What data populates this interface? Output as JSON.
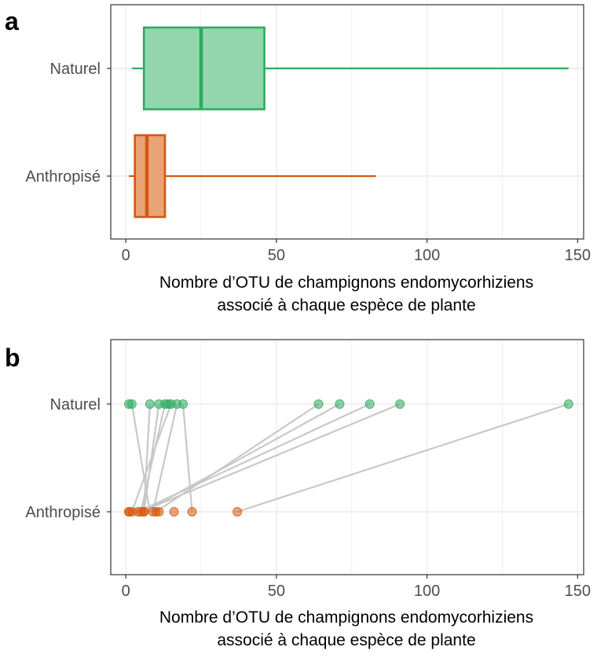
{
  "colors": {
    "naturel": "#2eaa5e",
    "naturel_fill": "#93d6ad",
    "anthropise": "#d5570f",
    "anthropise_fill": "#e8a476",
    "panel_border": "#333333",
    "grid": "#ebebeb",
    "link_line": "#c8c8c8"
  },
  "chart_data": [
    {
      "type": "boxplot",
      "panel_label": "a",
      "orientation": "horizontal",
      "categories": [
        "Naturel",
        "Anthropisé"
      ],
      "boxes": [
        {
          "category": "Naturel",
          "min": 2,
          "q1": 6,
          "median": 25,
          "q3": 46,
          "max": 147
        },
        {
          "category": "Anthropisé",
          "min": 1,
          "q1": 3,
          "median": 7,
          "q3": 13,
          "max": 83
        }
      ],
      "xlim": [
        -5,
        152
      ],
      "xticks": [
        0,
        50,
        100,
        150
      ],
      "xlabel": [
        "Nombre d’OTU de champignons endomycorhiziens",
        "associé à chaque espèce de plante"
      ],
      "ylabel": "",
      "grid": true
    },
    {
      "type": "scatter",
      "panel_label": "b",
      "categories": [
        "Naturel",
        "Anthropisé"
      ],
      "points": {
        "Naturel": [
          1,
          2,
          8,
          11,
          13,
          14,
          15,
          17,
          19,
          64,
          71,
          81,
          91,
          147
        ],
        "Anthropisé": [
          1,
          1,
          2,
          4,
          5,
          6,
          6,
          9,
          10,
          11,
          16,
          22,
          37
        ]
      },
      "pairs": [
        [
          2,
          8
        ],
        [
          15,
          2
        ],
        [
          8,
          6
        ],
        [
          13,
          5
        ],
        [
          11,
          6
        ],
        [
          17,
          9
        ],
        [
          19,
          22
        ],
        [
          64,
          10
        ],
        [
          71,
          6
        ],
        [
          81,
          4
        ],
        [
          91,
          5
        ],
        [
          147,
          37
        ]
      ],
      "xlim": [
        -5,
        152
      ],
      "xticks": [
        0,
        50,
        100,
        150
      ],
      "xlabel": [
        "Nombre d’OTU de champignons endomycorhiziens",
        "associé à chaque espèce de plante"
      ],
      "ylabel": "",
      "grid": true
    }
  ]
}
